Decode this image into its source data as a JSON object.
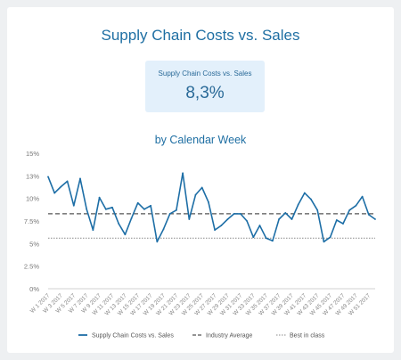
{
  "title": "Supply Chain Costs vs. Sales",
  "kpi": {
    "label": "Supply Chain Costs vs. Sales",
    "value": "8,3%"
  },
  "colors": {
    "series": "#1d6ea6",
    "average": "#555555",
    "best": "#8a8a8a",
    "title": "#1f6fa3"
  },
  "chart_data": {
    "type": "line",
    "title": "by Calendar Week",
    "ylim": [
      0,
      15
    ],
    "y_ticks": [
      "0%",
      "2.5%",
      "5%",
      "7.5%",
      "10%",
      "13%",
      "15%"
    ],
    "y_tick_values": [
      0,
      2.5,
      5,
      7.5,
      10,
      12.5,
      15
    ],
    "x_labels": [
      "W 1 2017",
      "W 3 2017",
      "W 5 2017",
      "W 7 2017",
      "W 9 2017",
      "W 11 2017",
      "W 13 2017",
      "W 15 2017",
      "W 17 2017",
      "W 19 2017",
      "W 21 2017",
      "W 23 2017",
      "W 25 2017",
      "W 27 2017",
      "W 29 2017",
      "W 31 2017",
      "W 33 2017",
      "W 35 2017",
      "W 37 2017",
      "W 39 2017",
      "W 41 2017",
      "W 43 2017",
      "W 45 2017",
      "W 47 2017",
      "W 49 2017",
      "W 51 2017"
    ],
    "series": [
      {
        "name": "Supply Chain Costs vs. Sales",
        "style": "solid",
        "values": [
          12.4,
          10.6,
          11.3,
          11.9,
          9.2,
          12.2,
          8.8,
          6.5,
          10.1,
          8.8,
          9.0,
          7.2,
          6.0,
          7.8,
          9.5,
          8.8,
          9.2,
          5.2,
          6.6,
          8.3,
          8.7,
          12.8,
          7.7,
          10.4,
          11.2,
          9.6,
          6.5,
          7.0,
          7.7,
          8.3,
          8.3,
          7.5,
          5.7,
          7.0,
          5.6,
          5.3,
          7.7,
          8.4,
          7.7,
          9.3,
          10.6,
          9.9,
          8.7,
          5.2,
          5.7,
          7.6,
          7.2,
          8.7,
          9.2,
          10.2,
          8.2,
          7.7
        ]
      },
      {
        "name": "Industry Average",
        "style": "dashed",
        "value": 8.3
      },
      {
        "name": "Best in class",
        "style": "dotted",
        "value": 5.6
      }
    ],
    "grid": false,
    "legend": "bottom"
  }
}
